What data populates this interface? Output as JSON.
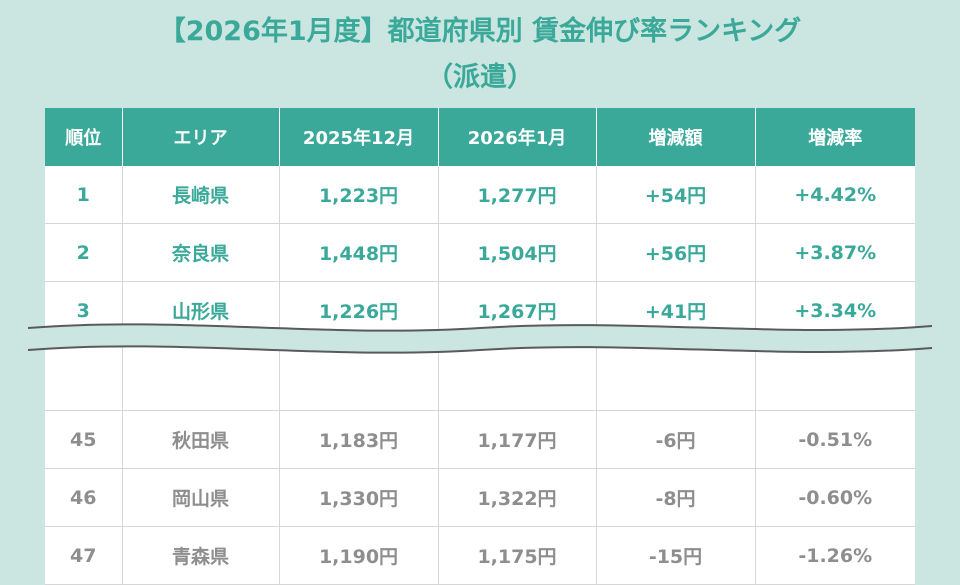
{
  "title": {
    "line1": "【2026年1月度】都道府県別 賃金伸び率ランキング",
    "line2": "（派遣）"
  },
  "table": {
    "headers": [
      "順位",
      "エリア",
      "2025年12月",
      "2026年1月",
      "増減額",
      "増減率"
    ],
    "top_rows": [
      [
        "1",
        "長崎県",
        "1,223円",
        "1,277円",
        "+54円",
        "+4.42%"
      ],
      [
        "2",
        "奈良県",
        "1,448円",
        "1,504円",
        "+56円",
        "+3.87%"
      ],
      [
        "3",
        "山形県",
        "1,226円",
        "1,267円",
        "+41円",
        "+3.34%"
      ]
    ],
    "bottom_rows": [
      [
        "45",
        "秋田県",
        "1,183円",
        "1,177円",
        "-6円",
        "-0.51%"
      ],
      [
        "46",
        "岡山県",
        "1,330円",
        "1,322円",
        "-8円",
        "-0.60%"
      ],
      [
        "47",
        "青森県",
        "1,190円",
        "1,175円",
        "-15円",
        "-1.26%"
      ]
    ]
  },
  "colors": {
    "accent": "#3aa99a",
    "background": "#cbe6e1",
    "muted_text": "#8e8e8e"
  }
}
